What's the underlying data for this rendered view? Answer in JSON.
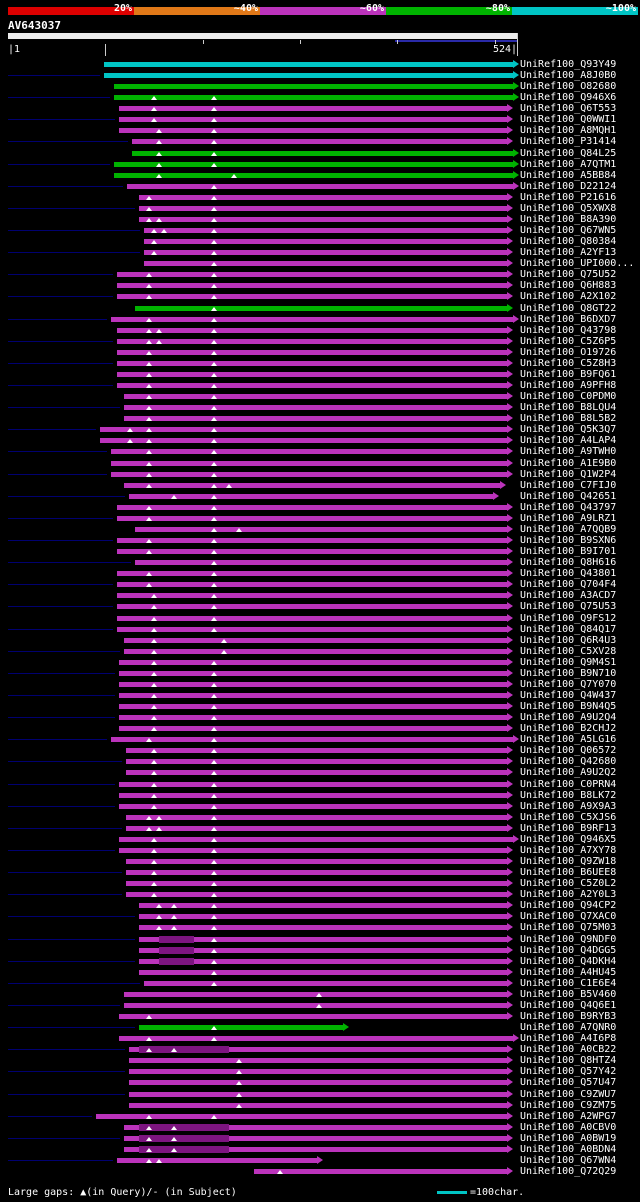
{
  "query": {
    "name": "AV643037",
    "start_label": "|1",
    "end_label": "524|"
  },
  "footer": {
    "gaps_legend": "Large gaps: ▲(in Query)/- (in Subject)",
    "scale_legend": "=100char."
  },
  "chart_data": {
    "type": "bar",
    "variant": "blast-alignment-overview",
    "title": "AV643037",
    "x_axis": {
      "min": 1,
      "max": 524,
      "unit": "sequence position",
      "tick_interval": 100
    },
    "identity_scale": [
      {
        "label": "20%",
        "color": "#dd0000"
      },
      {
        "label": "~40%",
        "color": "#e07818"
      },
      {
        "label": "~60%",
        "color": "#bb33bb"
      },
      {
        "label": "~80%",
        "color": "#00b300"
      },
      {
        "label": "~100%",
        "color": "#00c4c4"
      }
    ],
    "color_map": {
      "m": "#bb33bb",
      "g": "#00b300",
      "c": "#00c4c4",
      "gap_segment": "#7d1580",
      "leader": "#000070"
    },
    "hit_columns": [
      "id",
      "identity_color",
      "q_start",
      "q_end",
      "gap_triangle_positions",
      "leader_line",
      "thick_gap_segments"
    ],
    "hits": [
      [
        "UniRef100_Q93Y49",
        "c",
        100,
        524,
        [],
        false,
        []
      ],
      [
        "UniRef100_A8J0B0",
        "c",
        100,
        524,
        [],
        true,
        []
      ],
      [
        "UniRef100_O82680",
        "g",
        110,
        524,
        [],
        false,
        []
      ],
      [
        "UniRef100_Q946X6",
        "g",
        110,
        524,
        [
          151,
          213
        ],
        true,
        []
      ],
      [
        "UniRef100_Q6T553",
        "m",
        115,
        518,
        [
          151,
          213
        ],
        false,
        []
      ],
      [
        "UniRef100_Q0WWI1",
        "m",
        115,
        518,
        [
          151,
          213
        ],
        true,
        []
      ],
      [
        "UniRef100_A8MQH1",
        "m",
        115,
        518,
        [
          156,
          213
        ],
        false,
        []
      ],
      [
        "UniRef100_P31414",
        "m",
        128,
        518,
        [
          156,
          213
        ],
        true,
        []
      ],
      [
        "UniRef100_Q84L25",
        "g",
        128,
        524,
        [
          156,
          213
        ],
        false,
        []
      ],
      [
        "UniRef100_A7QTM1",
        "g",
        110,
        524,
        [
          156,
          213
        ],
        true,
        []
      ],
      [
        "UniRef100_A5BB84",
        "g",
        110,
        524,
        [
          156,
          233
        ],
        false,
        []
      ],
      [
        "UniRef100_D22124",
        "m",
        123,
        524,
        [
          213
        ],
        true,
        []
      ],
      [
        "UniRef100_P21616",
        "m",
        136,
        518,
        [
          146,
          213
        ],
        false,
        []
      ],
      [
        "UniRef100_Q5XWX8",
        "m",
        136,
        518,
        [
          146,
          213
        ],
        true,
        []
      ],
      [
        "UniRef100_B8A390",
        "m",
        136,
        518,
        [
          146,
          156,
          213
        ],
        false,
        []
      ],
      [
        "UniRef100_Q67WN5",
        "m",
        141,
        518,
        [
          151,
          161,
          213
        ],
        true,
        []
      ],
      [
        "UniRef100_Q80384",
        "m",
        141,
        518,
        [
          151,
          213
        ],
        false,
        []
      ],
      [
        "UniRef100_A2YF13",
        "m",
        141,
        518,
        [
          151,
          213
        ],
        true,
        []
      ],
      [
        "UniRef100_UPI000...",
        "m",
        141,
        518,
        [
          213
        ],
        false,
        []
      ],
      [
        "UniRef100_Q75U52",
        "m",
        113,
        518,
        [
          146,
          213
        ],
        true,
        []
      ],
      [
        "UniRef100_Q6H883",
        "m",
        113,
        518,
        [
          146,
          213
        ],
        false,
        []
      ],
      [
        "UniRef100_A2X102",
        "m",
        113,
        518,
        [
          146,
          213
        ],
        true,
        []
      ],
      [
        "UniRef100_Q8GT22",
        "g",
        131,
        518,
        [
          213
        ],
        false,
        []
      ],
      [
        "UniRef100_B6DXD7",
        "m",
        107,
        524,
        [
          146,
          213
        ],
        true,
        []
      ],
      [
        "UniRef100_Q43798",
        "m",
        113,
        518,
        [
          146,
          156,
          213
        ],
        false,
        []
      ],
      [
        "UniRef100_C5Z6P5",
        "m",
        113,
        518,
        [
          146,
          156,
          213
        ],
        true,
        []
      ],
      [
        "UniRef100_O19726",
        "m",
        113,
        518,
        [
          146,
          213
        ],
        false,
        []
      ],
      [
        "UniRef100_C5Z8H3",
        "m",
        113,
        518,
        [
          146,
          213
        ],
        true,
        []
      ],
      [
        "UniRef100_B9FQ61",
        "m",
        113,
        518,
        [
          146,
          213
        ],
        false,
        []
      ],
      [
        "UniRef100_A9PFH8",
        "m",
        113,
        518,
        [
          146,
          213
        ],
        true,
        []
      ],
      [
        "UniRef100_C0PDM0",
        "m",
        120,
        518,
        [
          146,
          213
        ],
        false,
        []
      ],
      [
        "UniRef100_B8LQU4",
        "m",
        120,
        518,
        [
          146,
          213
        ],
        true,
        []
      ],
      [
        "UniRef100_B8L5B2",
        "m",
        120,
        518,
        [
          146,
          213
        ],
        false,
        []
      ],
      [
        "UniRef100_Q5K3Q7",
        "m",
        95,
        518,
        [
          126,
          146,
          213
        ],
        true,
        []
      ],
      [
        "UniRef100_A4LAP4",
        "m",
        95,
        518,
        [
          126,
          146,
          213
        ],
        false,
        []
      ],
      [
        "UniRef100_A9TWH0",
        "m",
        107,
        518,
        [
          146,
          213
        ],
        true,
        []
      ],
      [
        "UniRef100_A1E9B0",
        "m",
        107,
        518,
        [
          146,
          213
        ],
        false,
        []
      ],
      [
        "UniRef100_Q1W2P4",
        "m",
        107,
        518,
        [
          146,
          213
        ],
        true,
        []
      ],
      [
        "UniRef100_C7FIJ0",
        "m",
        120,
        511,
        [
          146,
          213,
          228
        ],
        false,
        []
      ],
      [
        "UniRef100_Q42651",
        "m",
        125,
        503,
        [
          172,
          213
        ],
        true,
        []
      ],
      [
        "UniRef100_Q43797",
        "m",
        113,
        518,
        [
          146,
          213
        ],
        false,
        []
      ],
      [
        "UniRef100_A9LRZ1",
        "m",
        113,
        518,
        [
          146,
          213
        ],
        true,
        []
      ],
      [
        "UniRef100_A7QQB9",
        "m",
        131,
        518,
        [
          213,
          238
        ],
        false,
        []
      ],
      [
        "UniRef100_B9SXN6",
        "m",
        113,
        518,
        [
          146,
          213
        ],
        true,
        []
      ],
      [
        "UniRef100_B9I701",
        "m",
        113,
        518,
        [
          146,
          213
        ],
        false,
        []
      ],
      [
        "UniRef100_Q8H616",
        "m",
        131,
        518,
        [
          213
        ],
        true,
        []
      ],
      [
        "UniRef100_Q43801",
        "m",
        113,
        518,
        [
          146,
          213
        ],
        false,
        []
      ],
      [
        "UniRef100_Q704F4",
        "m",
        113,
        518,
        [
          146,
          213
        ],
        true,
        []
      ],
      [
        "UniRef100_A3ACD7",
        "m",
        113,
        518,
        [
          151,
          213
        ],
        false,
        []
      ],
      [
        "UniRef100_Q75U53",
        "m",
        113,
        518,
        [
          151,
          213
        ],
        true,
        []
      ],
      [
        "UniRef100_Q9FS12",
        "m",
        113,
        518,
        [
          151,
          213
        ],
        false,
        []
      ],
      [
        "UniRef100_Q84Q17",
        "m",
        113,
        518,
        [
          151,
          213
        ],
        true,
        []
      ],
      [
        "UniRef100_Q6R4U3",
        "m",
        120,
        518,
        [
          151,
          223
        ],
        false,
        []
      ],
      [
        "UniRef100_C5XV28",
        "m",
        120,
        518,
        [
          151,
          223
        ],
        true,
        []
      ],
      [
        "UniRef100_Q9M4S1",
        "m",
        115,
        518,
        [
          151,
          213
        ],
        false,
        []
      ],
      [
        "UniRef100_B9N710",
        "m",
        115,
        518,
        [
          151,
          213
        ],
        true,
        []
      ],
      [
        "UniRef100_Q7Y070",
        "m",
        115,
        518,
        [
          151,
          213
        ],
        false,
        []
      ],
      [
        "UniRef100_Q4W437",
        "m",
        115,
        518,
        [
          151,
          213
        ],
        true,
        []
      ],
      [
        "UniRef100_B9N4Q5",
        "m",
        115,
        518,
        [
          151,
          213
        ],
        false,
        []
      ],
      [
        "UniRef100_A9U2Q4",
        "m",
        115,
        518,
        [
          151,
          213
        ],
        true,
        []
      ],
      [
        "UniRef100_B2CHJ2",
        "m",
        115,
        518,
        [
          151,
          213
        ],
        false,
        []
      ],
      [
        "UniRef100_A5LG16",
        "m",
        107,
        524,
        [
          146,
          213
        ],
        true,
        []
      ],
      [
        "UniRef100_Q06572",
        "m",
        122,
        518,
        [
          151,
          213
        ],
        false,
        []
      ],
      [
        "UniRef100_Q42680",
        "m",
        122,
        518,
        [
          151,
          213
        ],
        true,
        []
      ],
      [
        "UniRef100_A9U2Q2",
        "m",
        122,
        518,
        [
          151,
          213
        ],
        false,
        []
      ],
      [
        "UniRef100_C0PRN4",
        "m",
        115,
        518,
        [
          151,
          213
        ],
        true,
        []
      ],
      [
        "UniRef100_B8LK72",
        "m",
        115,
        518,
        [
          151,
          213
        ],
        false,
        []
      ],
      [
        "UniRef100_A9X9A3",
        "m",
        115,
        518,
        [
          151,
          213
        ],
        true,
        []
      ],
      [
        "UniRef100_C5XJS6",
        "m",
        122,
        518,
        [
          146,
          156,
          213
        ],
        false,
        []
      ],
      [
        "UniRef100_B9RF13",
        "m",
        122,
        518,
        [
          146,
          156,
          213
        ],
        true,
        []
      ],
      [
        "UniRef100_Q946X5",
        "m",
        115,
        524,
        [
          151,
          213
        ],
        false,
        []
      ],
      [
        "UniRef100_A7XY78",
        "m",
        115,
        518,
        [
          151,
          213
        ],
        true,
        []
      ],
      [
        "UniRef100_Q9ZW18",
        "m",
        122,
        518,
        [
          151,
          213
        ],
        false,
        []
      ],
      [
        "UniRef100_B6UEE8",
        "m",
        122,
        518,
        [
          151,
          213
        ],
        true,
        []
      ],
      [
        "UniRef100_C5Z0L2",
        "m",
        122,
        518,
        [
          151,
          213
        ],
        false,
        []
      ],
      [
        "UniRef100_A2Y0L3",
        "m",
        122,
        518,
        [
          151,
          213
        ],
        true,
        []
      ],
      [
        "UniRef100_Q94CP2",
        "m",
        136,
        518,
        [
          156,
          172,
          213
        ],
        false,
        []
      ],
      [
        "UniRef100_Q7XAC0",
        "m",
        136,
        518,
        [
          156,
          172,
          213
        ],
        true,
        []
      ],
      [
        "UniRef100_Q75M03",
        "m",
        136,
        518,
        [
          156,
          172,
          213
        ],
        false,
        []
      ],
      [
        "UniRef100_Q9NDF0",
        "m",
        136,
        518,
        [
          213
        ],
        true,
        [
          [
            156,
            192
          ]
        ]
      ],
      [
        "UniRef100_Q4DGG5",
        "m",
        136,
        518,
        [
          213
        ],
        false,
        [
          [
            156,
            192
          ]
        ]
      ],
      [
        "UniRef100_Q4DKH4",
        "m",
        136,
        518,
        [
          213
        ],
        true,
        [
          [
            156,
            192
          ]
        ]
      ],
      [
        "UniRef100_A4HU45",
        "m",
        136,
        518,
        [
          213
        ],
        false,
        []
      ],
      [
        "UniRef100_C1E6E4",
        "m",
        141,
        518,
        [
          213
        ],
        true,
        []
      ],
      [
        "UniRef100_B5V460",
        "m",
        120,
        518,
        [
          321
        ],
        false,
        []
      ],
      [
        "UniRef100_Q4Q6E1",
        "m",
        120,
        518,
        [
          321
        ],
        true,
        []
      ],
      [
        "UniRef100_B9RYB3",
        "m",
        115,
        518,
        [
          146
        ],
        false,
        []
      ],
      [
        "UniRef100_A7QNR0",
        "g",
        136,
        349,
        [
          213
        ],
        true,
        []
      ],
      [
        "UniRef100_A4I6P8",
        "m",
        115,
        524,
        [
          146,
          213
        ],
        false,
        []
      ],
      [
        "UniRef100_A0CB22",
        "m",
        125,
        518,
        [
          146,
          172
        ],
        true,
        [
          [
            136,
            228
          ]
        ]
      ],
      [
        "UniRef100_Q8HTZ4",
        "m",
        125,
        518,
        [
          238
        ],
        false,
        []
      ],
      [
        "UniRef100_Q57Y42",
        "m",
        125,
        518,
        [
          238
        ],
        true,
        []
      ],
      [
        "UniRef100_Q57U47",
        "m",
        125,
        518,
        [
          238
        ],
        false,
        []
      ],
      [
        "UniRef100_C9ZWU7",
        "m",
        125,
        518,
        [
          238
        ],
        true,
        []
      ],
      [
        "UniRef100_C9ZM75",
        "m",
        125,
        518,
        [
          238
        ],
        false,
        []
      ],
      [
        "UniRef100_A2WPG7",
        "m",
        91,
        518,
        [
          146,
          213
        ],
        true,
        []
      ],
      [
        "UniRef100_A0CBV0",
        "m",
        120,
        518,
        [
          146,
          172
        ],
        false,
        [
          [
            136,
            228
          ]
        ]
      ],
      [
        "UniRef100_A0BW19",
        "m",
        120,
        518,
        [
          146,
          172
        ],
        true,
        [
          [
            136,
            228
          ]
        ]
      ],
      [
        "UniRef100_A0BDN4",
        "m",
        120,
        518,
        [
          146,
          172
        ],
        false,
        [
          [
            136,
            228
          ]
        ]
      ],
      [
        "UniRef100_Q67WN4",
        "m",
        113,
        323,
        [
          146,
          156
        ],
        true,
        []
      ],
      [
        "UniRef100_Q72Q29",
        "m",
        254,
        518,
        [
          280
        ],
        false,
        []
      ]
    ]
  }
}
